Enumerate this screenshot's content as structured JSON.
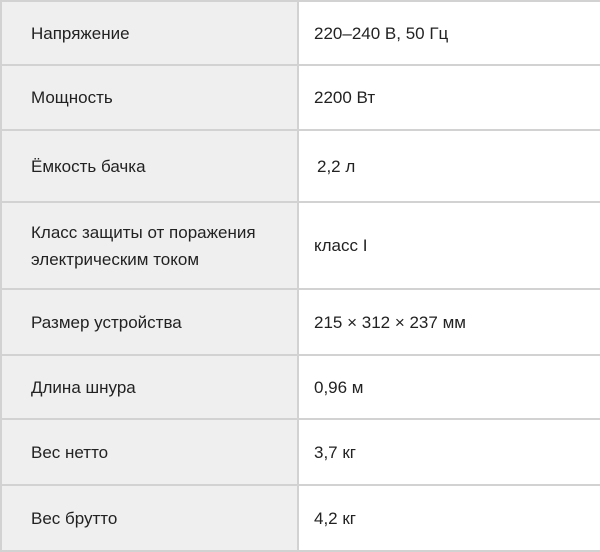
{
  "specs": [
    {
      "label": "Напряжение",
      "value": "220–240 В, 50 Гц"
    },
    {
      "label": "Мощность",
      "value": "2200 Вт"
    },
    {
      "label": "Ёмкость бачка",
      "value": "2,2 л"
    },
    {
      "label": "Класс защиты от поражения электрическим током",
      "value": "класс I"
    },
    {
      "label": "Размер устройства",
      "value": "215 × 312 × 237 мм"
    },
    {
      "label": "Длина шнура",
      "value": "0,96 м"
    },
    {
      "label": "Вес нетто",
      "value": "3,7 кг"
    },
    {
      "label": "Вес брутто",
      "value": "4,2 кг"
    }
  ]
}
